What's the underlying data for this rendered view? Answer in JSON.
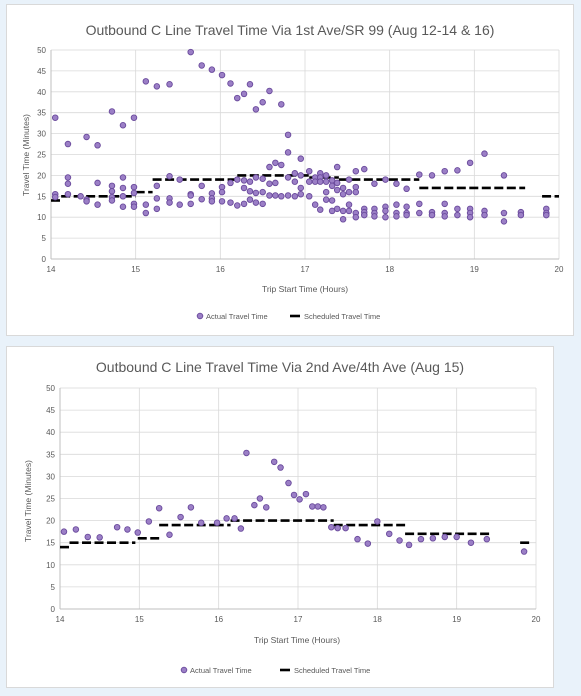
{
  "chart_data": [
    {
      "type": "scatter",
      "title": "Outbound C Line Travel Time Via 1st Ave/SR 99 (Aug 12-14 & 16)",
      "xlabel": "Trip Start Time (Hours)",
      "ylabel": "Travel Time (Minutes)",
      "xlim": [
        14,
        20
      ],
      "ylim": [
        0,
        50
      ],
      "xticks": [
        14,
        15,
        16,
        17,
        18,
        19,
        20
      ],
      "yticks": [
        0,
        5,
        10,
        15,
        20,
        25,
        30,
        35,
        40,
        45,
        50
      ],
      "grid": true,
      "legend_position": "bottom",
      "series": [
        {
          "name": "Actual Travel Time",
          "color": "#9b7fc6",
          "marker": "circle",
          "points": [
            [
              14.05,
              33.8
            ],
            [
              14.05,
              15.5
            ],
            [
              14.05,
              14.8
            ],
            [
              14.2,
              27.5
            ],
            [
              14.2,
              19.5
            ],
            [
              14.2,
              18
            ],
            [
              14.2,
              15.5
            ],
            [
              14.35,
              15
            ],
            [
              14.42,
              29.2
            ],
            [
              14.42,
              14.2
            ],
            [
              14.42,
              13.8
            ],
            [
              14.55,
              27.2
            ],
            [
              14.55,
              18.2
            ],
            [
              14.55,
              13
            ],
            [
              14.72,
              35.3
            ],
            [
              14.72,
              17.5
            ],
            [
              14.72,
              16.2
            ],
            [
              14.72,
              14.8
            ],
            [
              14.72,
              14
            ],
            [
              14.85,
              32
            ],
            [
              14.85,
              19.5
            ],
            [
              14.85,
              17
            ],
            [
              14.85,
              15
            ],
            [
              14.85,
              12.5
            ],
            [
              14.98,
              33.8
            ],
            [
              14.98,
              17.2
            ],
            [
              14.98,
              15.8
            ],
            [
              14.98,
              13.2
            ],
            [
              14.98,
              12.5
            ],
            [
              15.12,
              42.5
            ],
            [
              15.12,
              13
            ],
            [
              15.12,
              11
            ],
            [
              15.25,
              41.3
            ],
            [
              15.25,
              17.5
            ],
            [
              15.25,
              14.5
            ],
            [
              15.25,
              12
            ],
            [
              15.4,
              41.8
            ],
            [
              15.4,
              19.8
            ],
            [
              15.4,
              14.5
            ],
            [
              15.4,
              13.5
            ],
            [
              15.52,
              19
            ],
            [
              15.52,
              13
            ],
            [
              15.65,
              49.5
            ],
            [
              15.65,
              15.5
            ],
            [
              15.65,
              15.2
            ],
            [
              15.65,
              13.2
            ],
            [
              15.78,
              46.3
            ],
            [
              15.78,
              17.5
            ],
            [
              15.78,
              14.3
            ],
            [
              15.9,
              45.3
            ],
            [
              15.9,
              15.7
            ],
            [
              15.9,
              14.5
            ],
            [
              15.9,
              13.8
            ],
            [
              16.02,
              44
            ],
            [
              16.02,
              17.2
            ],
            [
              16.02,
              16
            ],
            [
              16.02,
              13.8
            ],
            [
              16.12,
              42
            ],
            [
              16.12,
              18.2
            ],
            [
              16.12,
              13.5
            ],
            [
              16.2,
              38.5
            ],
            [
              16.2,
              19
            ],
            [
              16.2,
              12.8
            ],
            [
              16.28,
              39.5
            ],
            [
              16.28,
              18.8
            ],
            [
              16.28,
              17
            ],
            [
              16.28,
              13.2
            ],
            [
              16.35,
              41.8
            ],
            [
              16.35,
              18.5
            ],
            [
              16.35,
              16.2
            ],
            [
              16.35,
              14.2
            ],
            [
              16.42,
              35.8
            ],
            [
              16.42,
              19.5
            ],
            [
              16.42,
              15.8
            ],
            [
              16.42,
              13.5
            ],
            [
              16.5,
              37.5
            ],
            [
              16.5,
              19.2
            ],
            [
              16.5,
              16
            ],
            [
              16.5,
              13.2
            ],
            [
              16.58,
              40.2
            ],
            [
              16.58,
              22
            ],
            [
              16.58,
              18
            ],
            [
              16.58,
              15.2
            ],
            [
              16.65,
              23
            ],
            [
              16.65,
              18.2
            ],
            [
              16.65,
              15.2
            ],
            [
              16.72,
              37
            ],
            [
              16.72,
              22.5
            ],
            [
              16.72,
              15
            ],
            [
              16.8,
              29.7
            ],
            [
              16.8,
              25.5
            ],
            [
              16.8,
              19.5
            ],
            [
              16.8,
              15.2
            ],
            [
              16.88,
              20.5
            ],
            [
              16.88,
              18.5
            ],
            [
              16.88,
              15
            ],
            [
              16.95,
              24
            ],
            [
              16.95,
              20
            ],
            [
              16.95,
              17
            ],
            [
              16.95,
              15.5
            ],
            [
              17.05,
              21
            ],
            [
              17.05,
              18.5
            ],
            [
              17.05,
              15
            ],
            [
              17.12,
              19.5
            ],
            [
              17.12,
              18.5
            ],
            [
              17.12,
              13
            ],
            [
              17.18,
              20.5
            ],
            [
              17.18,
              19.5
            ],
            [
              17.18,
              18.5
            ],
            [
              17.18,
              11.8
            ],
            [
              17.25,
              20
            ],
            [
              17.25,
              18.5
            ],
            [
              17.25,
              16
            ],
            [
              17.25,
              14.2
            ],
            [
              17.32,
              18.8
            ],
            [
              17.32,
              17.5
            ],
            [
              17.32,
              14
            ],
            [
              17.32,
              11.5
            ],
            [
              17.38,
              22
            ],
            [
              17.38,
              18.2
            ],
            [
              17.38,
              16.5
            ],
            [
              17.38,
              12
            ],
            [
              17.45,
              17
            ],
            [
              17.45,
              15.5
            ],
            [
              17.45,
              11.5
            ],
            [
              17.45,
              9.5
            ],
            [
              17.52,
              19
            ],
            [
              17.52,
              16
            ],
            [
              17.52,
              13
            ],
            [
              17.52,
              11.5
            ],
            [
              17.6,
              21
            ],
            [
              17.6,
              17.2
            ],
            [
              17.6,
              16
            ],
            [
              17.6,
              11
            ],
            [
              17.6,
              10
            ],
            [
              17.7,
              21.5
            ],
            [
              17.7,
              12
            ],
            [
              17.7,
              11.2
            ],
            [
              17.7,
              10.5
            ],
            [
              17.82,
              18
            ],
            [
              17.82,
              12
            ],
            [
              17.82,
              11
            ],
            [
              17.82,
              10.2
            ],
            [
              17.95,
              19
            ],
            [
              17.95,
              12.5
            ],
            [
              17.95,
              11.5
            ],
            [
              17.95,
              10
            ],
            [
              18.08,
              18
            ],
            [
              18.08,
              13
            ],
            [
              18.08,
              11
            ],
            [
              18.08,
              10.2
            ],
            [
              18.2,
              16.8
            ],
            [
              18.2,
              12.5
            ],
            [
              18.2,
              11
            ],
            [
              18.2,
              10.5
            ],
            [
              18.35,
              20.2
            ],
            [
              18.35,
              13.2
            ],
            [
              18.35,
              11
            ],
            [
              18.5,
              20
            ],
            [
              18.5,
              11.2
            ],
            [
              18.5,
              10.5
            ],
            [
              18.65,
              21
            ],
            [
              18.65,
              13.2
            ],
            [
              18.65,
              11
            ],
            [
              18.65,
              10.2
            ],
            [
              18.8,
              21.2
            ],
            [
              18.8,
              12
            ],
            [
              18.8,
              10.5
            ],
            [
              18.95,
              23
            ],
            [
              18.95,
              12
            ],
            [
              18.95,
              11
            ],
            [
              18.95,
              10
            ],
            [
              19.12,
              25.2
            ],
            [
              19.12,
              11.5
            ],
            [
              19.12,
              10.5
            ],
            [
              19.35,
              20
            ],
            [
              19.35,
              11
            ],
            [
              19.35,
              9
            ],
            [
              19.55,
              11.2
            ],
            [
              19.55,
              10.5
            ],
            [
              19.85,
              12
            ],
            [
              19.85,
              11
            ],
            [
              19.85,
              10.5
            ]
          ]
        },
        {
          "name": "Scheduled Travel Time",
          "color": "#000000",
          "style": "dashed",
          "segments": [
            [
              14.0,
              14.12,
              14
            ],
            [
              14.12,
              14.7,
              15
            ],
            [
              14.7,
              15.0,
              15
            ],
            [
              15.0,
              15.2,
              16
            ],
            [
              15.2,
              16.2,
              19
            ],
            [
              16.2,
              17.05,
              20
            ],
            [
              17.05,
              17.4,
              19.5
            ],
            [
              17.4,
              18.35,
              19
            ],
            [
              18.35,
              19.6,
              17
            ],
            [
              19.8,
              20.0,
              15
            ]
          ]
        }
      ]
    },
    {
      "type": "scatter",
      "title": "Outbound C Line Travel Time Via 2nd Ave/4th Ave (Aug 15)",
      "xlabel": "Trip Start Time (Hours)",
      "ylabel": "Travel Time (Minutes)",
      "xlim": [
        14,
        20
      ],
      "ylim": [
        0,
        50
      ],
      "xticks": [
        14,
        15,
        16,
        17,
        18,
        19,
        20
      ],
      "yticks": [
        0,
        5,
        10,
        15,
        20,
        25,
        30,
        35,
        40,
        45,
        50
      ],
      "grid": true,
      "legend_position": "bottom",
      "series": [
        {
          "name": "Actual Travel Time",
          "color": "#9b7fc6",
          "marker": "circle",
          "points": [
            [
              14.05,
              17.5
            ],
            [
              14.2,
              18
            ],
            [
              14.35,
              16.3
            ],
            [
              14.5,
              16.2
            ],
            [
              14.72,
              18.5
            ],
            [
              14.85,
              18
            ],
            [
              14.98,
              17.3
            ],
            [
              15.12,
              19.8
            ],
            [
              15.25,
              22.8
            ],
            [
              15.38,
              16.8
            ],
            [
              15.52,
              20.8
            ],
            [
              15.65,
              23
            ],
            [
              15.78,
              19.5
            ],
            [
              15.98,
              19.5
            ],
            [
              16.1,
              20.5
            ],
            [
              16.2,
              20.5
            ],
            [
              16.28,
              18.2
            ],
            [
              16.35,
              35.3
            ],
            [
              16.45,
              23.5
            ],
            [
              16.52,
              25
            ],
            [
              16.6,
              23
            ],
            [
              16.7,
              33.3
            ],
            [
              16.78,
              32
            ],
            [
              16.88,
              28.5
            ],
            [
              16.95,
              25.8
            ],
            [
              17.02,
              24.8
            ],
            [
              17.1,
              26
            ],
            [
              17.18,
              23.2
            ],
            [
              17.25,
              23.2
            ],
            [
              17.32,
              23
            ],
            [
              17.42,
              18.5
            ],
            [
              17.5,
              18.3
            ],
            [
              17.6,
              18.3
            ],
            [
              17.75,
              15.8
            ],
            [
              17.88,
              14.8
            ],
            [
              18.0,
              19.8
            ],
            [
              18.15,
              17
            ],
            [
              18.28,
              15.5
            ],
            [
              18.4,
              14.5
            ],
            [
              18.55,
              15.8
            ],
            [
              18.7,
              16
            ],
            [
              18.85,
              16.3
            ],
            [
              19.0,
              16.3
            ],
            [
              19.18,
              15
            ],
            [
              19.38,
              15.8
            ],
            [
              19.85,
              13
            ]
          ]
        },
        {
          "name": "Scheduled Travel Time",
          "color": "#000000",
          "style": "dashed",
          "segments": [
            [
              14.0,
              14.12,
              14
            ],
            [
              14.12,
              14.95,
              15
            ],
            [
              14.98,
              15.25,
              16
            ],
            [
              15.25,
              15.95,
              19
            ],
            [
              15.95,
              16.15,
              19
            ],
            [
              16.15,
              17.45,
              20
            ],
            [
              17.45,
              18.35,
              19
            ],
            [
              18.35,
              19.45,
              17
            ],
            [
              19.8,
              19.95,
              15
            ]
          ]
        }
      ]
    }
  ]
}
